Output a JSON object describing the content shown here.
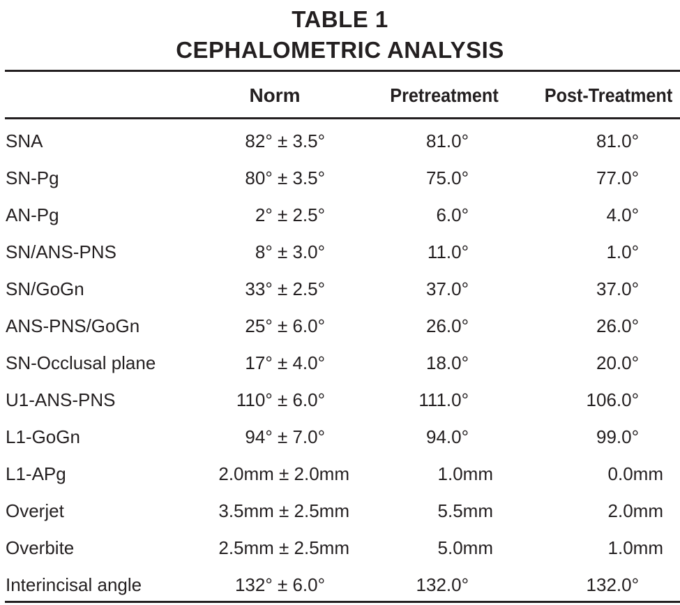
{
  "title_line1": "TABLE 1",
  "title_line2": "CEPHALOMETRIC ANALYSIS",
  "headers": {
    "parameter": "",
    "norm": "Norm",
    "pretreatment": "Pretreatment",
    "post_treatment": "Post-Treatment"
  },
  "rows": [
    {
      "parameter": "SNA",
      "norm": "82° ± 3.5°",
      "pre": "81.0°",
      "post": "81.0°"
    },
    {
      "parameter": "SN-Pg",
      "norm": "80° ± 3.5°",
      "pre": "75.0°",
      "post": "77.0°"
    },
    {
      "parameter": "AN-Pg",
      "norm": "2° ± 2.5°",
      "pre": "6.0°",
      "post": "4.0°"
    },
    {
      "parameter": "SN/ANS-PNS",
      "norm": "8° ± 3.0°",
      "pre": "11.0°",
      "post": "1.0°"
    },
    {
      "parameter": "SN/GoGn",
      "norm": "33° ± 2.5°",
      "pre": "37.0°",
      "post": "37.0°"
    },
    {
      "parameter": "ANS-PNS/GoGn",
      "norm": "25° ± 6.0°",
      "pre": "26.0°",
      "post": "26.0°"
    },
    {
      "parameter": "SN-Occlusal plane",
      "norm": "17° ± 4.0°",
      "pre": "18.0°",
      "post": "20.0°"
    },
    {
      "parameter": "U1-ANS-PNS",
      "norm": "110° ± 6.0°",
      "pre": "111.0°",
      "post": "106.0°"
    },
    {
      "parameter": "L1-GoGn",
      "norm": "94° ± 7.0°",
      "pre": "94.0°",
      "post": "99.0°"
    },
    {
      "parameter": "L1-APg",
      "norm": "2.0mm ± 2.0mm",
      "pre": "1.0mm",
      "post": "0.0mm"
    },
    {
      "parameter": "Overjet",
      "norm": "3.5mm ± 2.5mm",
      "pre": "5.5mm",
      "post": "2.0mm"
    },
    {
      "parameter": "Overbite",
      "norm": "2.5mm ± 2.5mm",
      "pre": "5.0mm",
      "post": "1.0mm"
    },
    {
      "parameter": "Interincisal angle",
      "norm": "132° ± 6.0°",
      "pre": "132.0°",
      "post": "132.0°"
    }
  ]
}
